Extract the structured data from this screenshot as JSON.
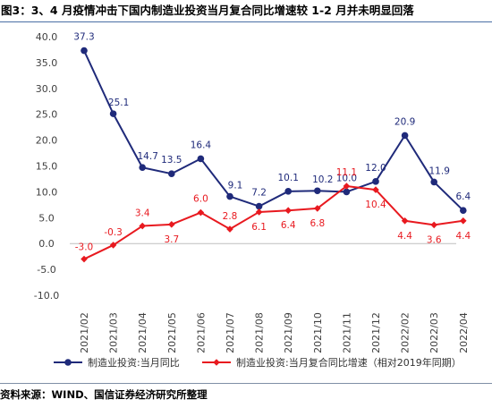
{
  "header": {
    "title": "图3：3、4 月疫情冲击下国内制造业投资当月复合同比增速较 1-2 月并未明显回落"
  },
  "footer": {
    "source": "资料来源：WIND、国信证券经济研究所整理"
  },
  "chart_data": {
    "type": "line",
    "title": "",
    "xlabel": "",
    "ylabel": "",
    "categories": [
      "2021/02",
      "2021/03",
      "2021/04",
      "2021/05",
      "2021/06",
      "2021/07",
      "2021/08",
      "2021/09",
      "2021/10",
      "2021/11",
      "2021/12",
      "2022/02",
      "2022/03",
      "2022/04"
    ],
    "ylim": [
      -10,
      40
    ],
    "yticks": [
      "40.0",
      "35.0",
      "30.0",
      "25.0",
      "20.0",
      "15.0",
      "10.0",
      "5.0",
      "0.0",
      "-5.0",
      "-10.0"
    ],
    "grid": false,
    "legend_position": "bottom",
    "series": [
      {
        "name": "制造业投资:当月同比",
        "color": "#1f2a7a",
        "values": [
          37.3,
          25.1,
          14.7,
          13.5,
          16.4,
          9.1,
          7.2,
          10.1,
          10.2,
          10.0,
          12.0,
          20.9,
          11.9,
          6.4
        ],
        "labels": [
          "37.3",
          "25.1",
          "14.7",
          "13.5",
          "16.4",
          "9.1",
          "7.2",
          "10.1",
          "10.2",
          "10.0",
          "12.0",
          "20.9",
          "11.9",
          "6.4"
        ]
      },
      {
        "name": "制造业投资:当月复合同比增速（相对2019年同期）",
        "color": "#e8191f",
        "values": [
          -3.0,
          -0.3,
          3.4,
          3.7,
          6.0,
          2.8,
          6.1,
          6.4,
          6.8,
          11.1,
          10.4,
          4.4,
          3.6,
          4.4
        ],
        "labels": [
          "-3.0",
          "-0.3",
          "3.4",
          "3.7",
          "6.0",
          "2.8",
          "6.1",
          "6.4",
          "6.8",
          "11.1",
          "10.4",
          "4.4",
          "3.6",
          "4.4"
        ]
      }
    ]
  }
}
